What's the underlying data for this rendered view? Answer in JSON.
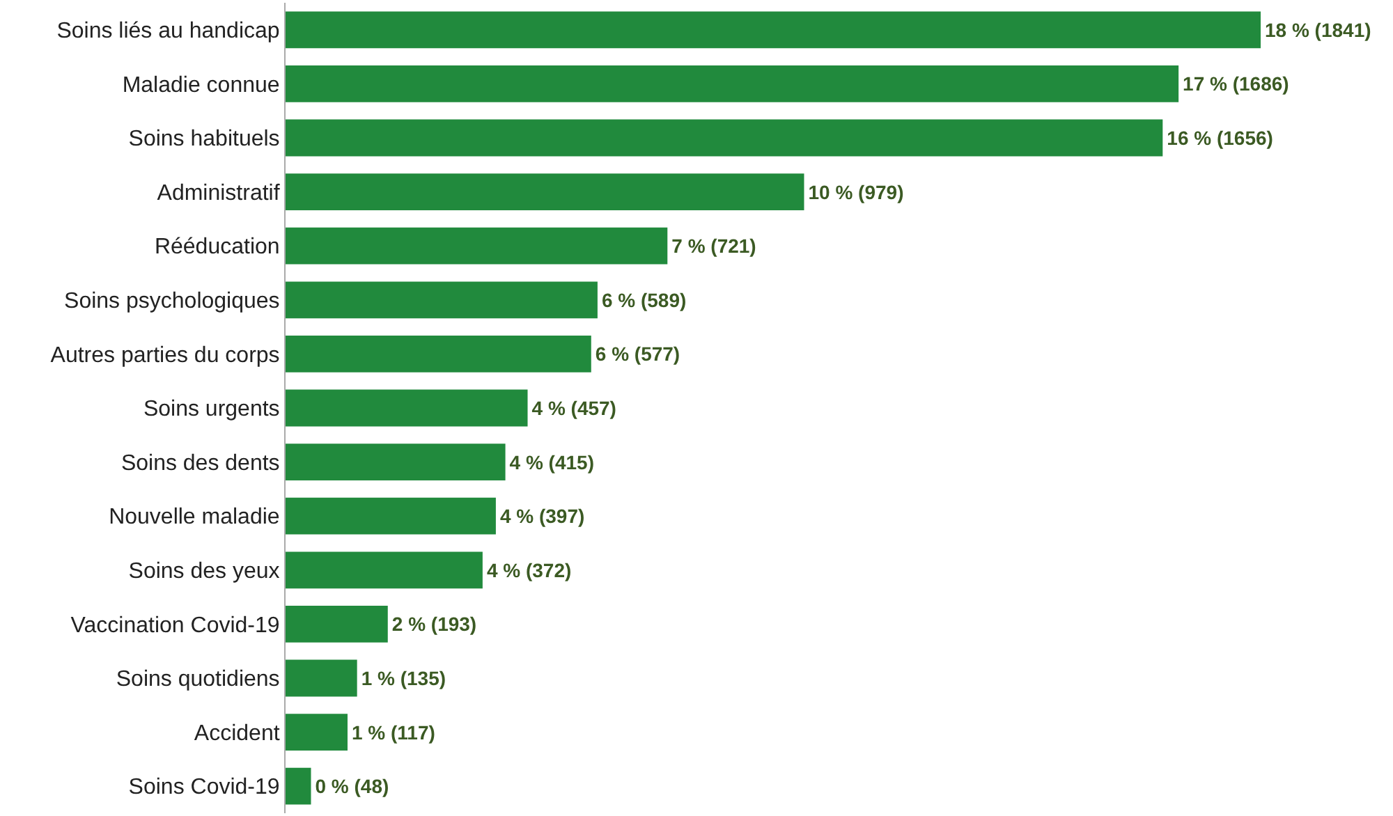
{
  "chart_data": {
    "type": "bar",
    "orientation": "horizontal",
    "categories": [
      "Soins liés au handicap",
      "Maladie connue",
      "Soins habituels",
      "Administratif",
      "Rééducation",
      "Soins psychologiques",
      "Autres parties du corps",
      "Soins urgents",
      "Soins des dents",
      "Nouvelle maladie",
      "Soins des yeux",
      "Vaccination Covid-19",
      "Soins quotidiens",
      "Accident",
      "Soins Covid-19"
    ],
    "values": [
      1841,
      1686,
      1656,
      979,
      721,
      589,
      577,
      457,
      415,
      397,
      372,
      193,
      135,
      117,
      48
    ],
    "value_labels": [
      "18 % (1841)",
      "17 % (1686)",
      "16 % (1656)",
      "10 % (979)",
      "7 % (721)",
      "6 % (589)",
      "6 % (577)",
      "4 % (457)",
      "4 % (415)",
      "4 % (397)",
      "4 % (372)",
      "2 % (193)",
      "1 % (135)",
      "1 % (117)",
      "0 % (48)"
    ],
    "color": "#218a3d"
  }
}
